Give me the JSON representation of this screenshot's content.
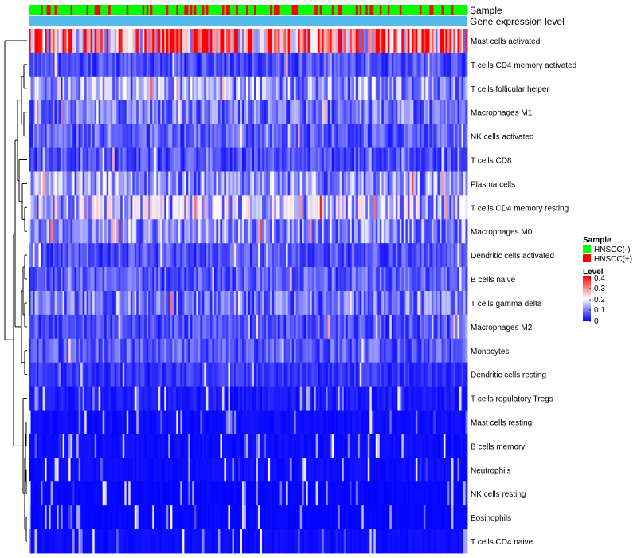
{
  "chart_data": {
    "type": "heatmap",
    "annotation_tracks": [
      {
        "name": "Sample",
        "categories": [
          "HNSCC(-)",
          "HNSCC(+)"
        ],
        "colors": [
          "#00ff00",
          "#ff0000"
        ]
      },
      {
        "name": "Gene expression level",
        "color": "#55bbee"
      }
    ],
    "rows": [
      {
        "label": "Mast cells activated",
        "mean": 0.3
      },
      {
        "label": "T cells CD4 memory activated",
        "mean": 0.06
      },
      {
        "label": "T cells follicular helper",
        "mean": 0.12
      },
      {
        "label": "Macrophages M1",
        "mean": 0.09
      },
      {
        "label": "NK cells activated",
        "mean": 0.07
      },
      {
        "label": "T cells CD8",
        "mean": 0.06
      },
      {
        "label": "Plasma cells",
        "mean": 0.12
      },
      {
        "label": "T cells CD4 memory resting",
        "mean": 0.14
      },
      {
        "label": "Macrophages M0",
        "mean": 0.11
      },
      {
        "label": "Dendritic cells activated",
        "mean": 0.06
      },
      {
        "label": "B cells naive",
        "mean": 0.07
      },
      {
        "label": "T cells gamma delta",
        "mean": 0.09
      },
      {
        "label": "Macrophages M2",
        "mean": 0.06
      },
      {
        "label": "Monocytes",
        "mean": 0.07
      },
      {
        "label": "Dendritic cells resting",
        "mean": 0.04
      },
      {
        "label": "T cells regulatory  Tregs",
        "mean": 0.02
      },
      {
        "label": "Mast cells resting",
        "mean": 0.01
      },
      {
        "label": "B cells memory",
        "mean": 0.01
      },
      {
        "label": "Neutrophils",
        "mean": 0.01
      },
      {
        "label": "NK cells resting",
        "mean": 0.005
      },
      {
        "label": "Eosinophils",
        "mean": 0.005
      },
      {
        "label": "T cells CD4 naive",
        "mean": 0.01
      }
    ],
    "n_samples": 220,
    "color_scale": {
      "name": "Level",
      "range": [
        0,
        0.4
      ],
      "ticks": [
        "0.4",
        "0.3",
        "0.2",
        "0.1",
        "0"
      ],
      "colors": [
        "#0000ff",
        "#ffffff",
        "#ff0000"
      ]
    },
    "legend_position": "right"
  }
}
